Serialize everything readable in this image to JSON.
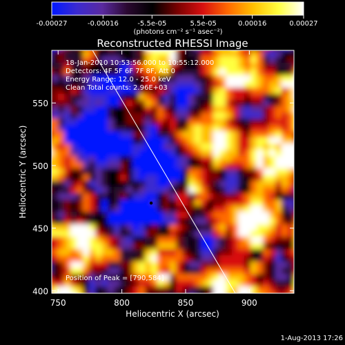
{
  "colorbar": {
    "ticks": [
      "-0.00027",
      "-0.00016",
      "-5.5e-05",
      "5.5e-05",
      "0.00016",
      "0.00027"
    ],
    "unit_label": "(photons cm⁻² s⁻¹ asec⁻²)",
    "range": [
      -0.00027,
      0.00027
    ],
    "colors": [
      "#0018ff",
      "#3b2ad0",
      "#5a2aa0",
      "#2a0830",
      "#000000",
      "#7a0000",
      "#d81010",
      "#ff6a00",
      "#ffc000",
      "#ffff40",
      "#ffffff"
    ]
  },
  "annotations": {
    "time": "18-Jan-2010 10:53:56.000 to 10:55:12.000",
    "detectors": "Detectors: 4F 5F 6F 7F 8F, Att 0",
    "energy": "Energy Range: 12.0 - 25.0 keV",
    "clean": "Clean     Total counts: 2.96E+03",
    "peak": "Position of Peak = [790,584]"
  },
  "footer_date": "1-Aug-2013 17:26",
  "chart_data": {
    "type": "heatmap",
    "title": "Reconstructed RHESSI Image",
    "xlabel": "Heliocentric X (arcsec)",
    "ylabel": "Heliocentric Y (arcsec)",
    "xlim": [
      745,
      935
    ],
    "ylim": [
      398,
      592
    ],
    "x_ticks": [
      750,
      800,
      850,
      900
    ],
    "y_ticks": [
      400,
      450,
      500,
      550
    ],
    "x_tick_labels": [
      "750",
      "800",
      "850",
      "900"
    ],
    "y_tick_labels": [
      "400",
      "450",
      "500",
      "550"
    ],
    "peak_position": [
      790,
      584
    ],
    "marker_point": [
      823,
      470
    ],
    "limb_line": [
      [
        777,
        592
      ],
      [
        889,
        398
      ]
    ]
  }
}
